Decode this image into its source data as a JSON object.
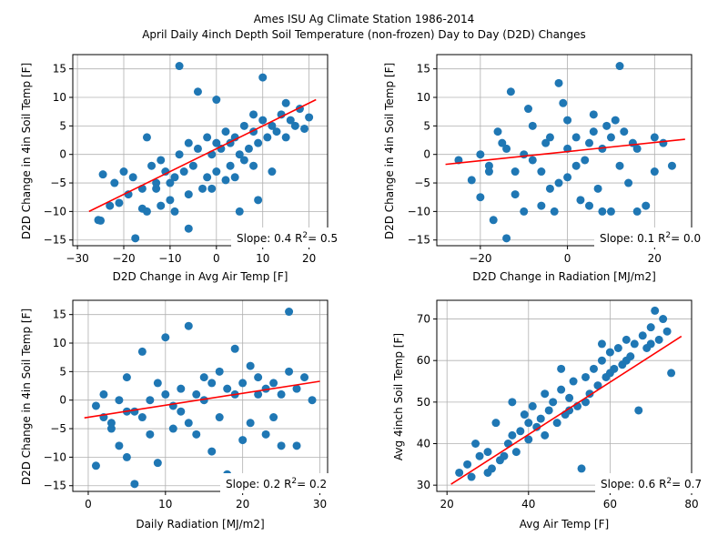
{
  "figure": {
    "title_line1": "Ames ISU Ag Climate Station 1986-2014",
    "title_line2": "April Daily 4inch Depth Soil Temperature (non-frozen) Day to Day (D2D) Changes"
  },
  "colors": {
    "points": "#1f77b4",
    "fit_line": "#ff0000",
    "grid": "#b0b0b0"
  },
  "chart_data": [
    {
      "type": "scatter",
      "id": "d2d-air-temp",
      "xlabel": "D2D Change in Avg Air Temp [F]",
      "ylabel": "D2D Change in 4in Soil Temp [F]",
      "xlim": [
        -31,
        24
      ],
      "ylim": [
        -16,
        17.5
      ],
      "xticks": [
        -30,
        -20,
        -10,
        0,
        10,
        20
      ],
      "yticks": [
        -15,
        -10,
        -5,
        0,
        5,
        10,
        15
      ],
      "grid": true,
      "annotation": {
        "slope_text": "Slope: 0.4",
        "r2_prefix": "R",
        "r2_sup": "2",
        "r2_text": "= 0.5"
      },
      "fit": {
        "slope": 0.4,
        "intercept": 1.0,
        "x_range": [
          -27.5,
          21.5
        ]
      },
      "points": [
        [
          -25.5,
          -11.5
        ],
        [
          -25,
          -11.6
        ],
        [
          -24.5,
          -3.5
        ],
        [
          -21,
          -8.5
        ],
        [
          -19,
          -7
        ],
        [
          -17.5,
          -14.7
        ],
        [
          -16,
          -9.5
        ],
        [
          -15,
          3
        ],
        [
          -13,
          -6
        ],
        [
          -8,
          15.5
        ],
        [
          -6,
          -13
        ],
        [
          -4,
          11
        ],
        [
          -2,
          -4
        ],
        [
          0,
          9.6
        ],
        [
          2,
          -4.5
        ],
        [
          5,
          -10
        ],
        [
          8,
          7
        ],
        [
          9,
          -8
        ],
        [
          10,
          13.5
        ],
        [
          12,
          -3
        ],
        [
          15,
          9
        ],
        [
          18,
          8
        ],
        [
          20,
          6.5
        ],
        [
          -22,
          -5
        ],
        [
          -20,
          -3
        ],
        [
          -18,
          -4
        ],
        [
          -14,
          -2
        ],
        [
          -12,
          -1
        ],
        [
          -10,
          -5
        ],
        [
          -8,
          0
        ],
        [
          -6,
          2
        ],
        [
          -4,
          1
        ],
        [
          -2,
          3
        ],
        [
          0,
          2
        ],
        [
          2,
          4
        ],
        [
          4,
          3
        ],
        [
          6,
          5
        ],
        [
          8,
          4
        ],
        [
          10,
          6
        ],
        [
          12,
          5
        ],
        [
          14,
          7
        ],
        [
          16,
          6
        ],
        [
          -12,
          -9
        ],
        [
          -10,
          -8
        ],
        [
          -6,
          -7
        ],
        [
          -3,
          -6
        ],
        [
          0,
          -3
        ],
        [
          3,
          -2
        ],
        [
          5,
          0
        ],
        [
          7,
          1
        ],
        [
          9,
          2
        ],
        [
          11,
          3
        ],
        [
          13,
          4
        ],
        [
          15,
          3
        ],
        [
          -16,
          -6
        ],
        [
          -9,
          -4
        ],
        [
          -7,
          -3
        ],
        [
          -5,
          -2
        ],
        [
          -1,
          0
        ],
        [
          1,
          1
        ],
        [
          3,
          2
        ],
        [
          -11,
          -3
        ],
        [
          -13,
          -5
        ],
        [
          6,
          -1
        ],
        [
          8,
          -2
        ],
        [
          4,
          -4
        ],
        [
          -1,
          -6
        ],
        [
          17,
          5
        ],
        [
          19,
          4.5
        ],
        [
          -23,
          -9
        ],
        [
          -15,
          -10
        ],
        [
          -9,
          -10
        ]
      ]
    },
    {
      "type": "scatter",
      "id": "d2d-radiation",
      "xlabel": "D2D Change in Radiation [MJ/m2]",
      "ylabel": "D2D Change in 4in Soil Temp [F]",
      "xlim": [
        -30,
        28.5
      ],
      "ylim": [
        -16,
        17.5
      ],
      "xticks": [
        -20,
        0,
        20
      ],
      "yticks": [
        -15,
        -10,
        -5,
        0,
        5,
        10,
        15
      ],
      "grid": true,
      "annotation": {
        "slope_text": "Slope: 0.1",
        "r2_prefix": "R",
        "r2_sup": "2",
        "r2_text": "= 0.0"
      },
      "fit": {
        "slope": 0.08,
        "intercept": 0.5,
        "x_range": [
          -28,
          27
        ]
      },
      "points": [
        [
          -25,
          -1
        ],
        [
          -22,
          -4.5
        ],
        [
          -20,
          -7.5
        ],
        [
          -18,
          -2
        ],
        [
          -17,
          -11.5
        ],
        [
          -16,
          4
        ],
        [
          -14,
          -14.7
        ],
        [
          -13,
          11
        ],
        [
          -12,
          -7
        ],
        [
          -10,
          -10
        ],
        [
          -8,
          5
        ],
        [
          -6,
          -9
        ],
        [
          -4,
          -6
        ],
        [
          -3,
          -10
        ],
        [
          -2,
          12.5
        ],
        [
          0,
          6
        ],
        [
          2,
          3
        ],
        [
          3,
          -8
        ],
        [
          5,
          -9
        ],
        [
          6,
          7
        ],
        [
          8,
          -10
        ],
        [
          10,
          -10
        ],
        [
          12,
          15.5
        ],
        [
          14,
          -5
        ],
        [
          16,
          -10
        ],
        [
          18,
          -9
        ],
        [
          20,
          -3
        ],
        [
          22,
          2
        ],
        [
          24,
          -2
        ],
        [
          -20,
          0
        ],
        [
          -15,
          2
        ],
        [
          -10,
          0
        ],
        [
          -5,
          2
        ],
        [
          0,
          1
        ],
        [
          5,
          2
        ],
        [
          10,
          3
        ],
        [
          15,
          2
        ],
        [
          20,
          3
        ],
        [
          -18,
          -3
        ],
        [
          -12,
          -3
        ],
        [
          -8,
          -1
        ],
        [
          -4,
          3
        ],
        [
          4,
          -1
        ],
        [
          8,
          1
        ],
        [
          12,
          -2
        ],
        [
          16,
          1
        ],
        [
          -6,
          -3
        ],
        [
          2,
          -2
        ],
        [
          6,
          4
        ],
        [
          -14,
          1
        ],
        [
          0,
          -4
        ],
        [
          -2,
          -5
        ],
        [
          7,
          -6
        ],
        [
          9,
          5
        ],
        [
          11,
          6
        ],
        [
          -9,
          8
        ],
        [
          13,
          4
        ],
        [
          -1,
          9
        ]
      ]
    },
    {
      "type": "scatter",
      "id": "daily-radiation",
      "xlabel": "Daily Radiation [MJ/m2]",
      "ylabel": "D2D Change in 4in Soil Temp [F]",
      "xlim": [
        -2,
        31
      ],
      "ylim": [
        -16,
        17.5
      ],
      "xticks": [
        0,
        10,
        20,
        30
      ],
      "yticks": [
        -15,
        -10,
        -5,
        0,
        5,
        10,
        15
      ],
      "grid": true,
      "annotation": {
        "slope_text": "Slope: 0.2",
        "r2_prefix": "R",
        "r2_sup": "2",
        "r2_text": "= 0.2"
      },
      "fit": {
        "slope": 0.21,
        "intercept": -3.0,
        "x_range": [
          -0.5,
          30
        ]
      },
      "points": [
        [
          1,
          -11.5
        ],
        [
          1,
          -1
        ],
        [
          2,
          -3
        ],
        [
          3,
          -5
        ],
        [
          4,
          -8
        ],
        [
          5,
          -10
        ],
        [
          5,
          4
        ],
        [
          6,
          -14.7
        ],
        [
          7,
          8.5
        ],
        [
          8,
          -6
        ],
        [
          9,
          -11
        ],
        [
          10,
          11
        ],
        [
          11,
          -5
        ],
        [
          12,
          -2
        ],
        [
          13,
          13
        ],
        [
          14,
          -6
        ],
        [
          15,
          4
        ],
        [
          16,
          -9
        ],
        [
          17,
          -3
        ],
        [
          18,
          -13
        ],
        [
          19,
          9
        ],
        [
          20,
          -7
        ],
        [
          21,
          -4
        ],
        [
          22,
          1
        ],
        [
          23,
          -6
        ],
        [
          24,
          -3
        ],
        [
          25,
          -8
        ],
        [
          26,
          15.5
        ],
        [
          27,
          -8
        ],
        [
          28,
          4
        ],
        [
          29,
          0
        ],
        [
          2,
          1
        ],
        [
          4,
          0
        ],
        [
          6,
          -2
        ],
        [
          8,
          0
        ],
        [
          10,
          1
        ],
        [
          12,
          2
        ],
        [
          14,
          1
        ],
        [
          16,
          3
        ],
        [
          18,
          2
        ],
        [
          20,
          3
        ],
        [
          22,
          4
        ],
        [
          24,
          3
        ],
        [
          26,
          5
        ],
        [
          3,
          -4
        ],
        [
          7,
          -3
        ],
        [
          11,
          -1
        ],
        [
          15,
          0
        ],
        [
          19,
          1
        ],
        [
          23,
          2
        ],
        [
          9,
          3
        ],
        [
          13,
          -4
        ],
        [
          17,
          5
        ],
        [
          21,
          6
        ],
        [
          25,
          1
        ],
        [
          5,
          -2
        ],
        [
          27,
          2
        ]
      ]
    },
    {
      "type": "scatter",
      "id": "avg-temps",
      "xlabel": "Avg Air Temp [F]",
      "ylabel": "Avg 4inch Soil Temp [F]",
      "xlim": [
        17.5,
        80
      ],
      "ylim": [
        28.5,
        74.5
      ],
      "xticks": [
        20,
        40,
        60,
        80
      ],
      "yticks": [
        30,
        40,
        50,
        60,
        70
      ],
      "grid": true,
      "annotation": {
        "slope_text": "Slope: 0.6",
        "r2_prefix": "R",
        "r2_sup": "2",
        "r2_text": "= 0.7"
      },
      "fit": {
        "slope": 0.63,
        "intercept": 17.0,
        "x_range": [
          21,
          77.5
        ]
      },
      "points": [
        [
          23,
          33
        ],
        [
          25,
          35
        ],
        [
          26,
          32
        ],
        [
          27,
          40
        ],
        [
          28,
          37
        ],
        [
          30,
          38
        ],
        [
          31,
          34
        ],
        [
          32,
          45
        ],
        [
          33,
          36
        ],
        [
          35,
          40
        ],
        [
          36,
          42
        ],
        [
          37,
          38
        ],
        [
          38,
          43
        ],
        [
          39,
          47
        ],
        [
          40,
          41
        ],
        [
          41,
          49
        ],
        [
          42,
          44
        ],
        [
          43,
          46
        ],
        [
          44,
          52
        ],
        [
          45,
          48
        ],
        [
          46,
          50
        ],
        [
          47,
          45
        ],
        [
          48,
          53
        ],
        [
          49,
          47
        ],
        [
          50,
          51
        ],
        [
          51,
          55
        ],
        [
          52,
          49
        ],
        [
          53,
          34
        ],
        [
          54,
          56
        ],
        [
          55,
          52
        ],
        [
          56,
          58
        ],
        [
          57,
          54
        ],
        [
          58,
          60
        ],
        [
          59,
          56
        ],
        [
          60,
          62
        ],
        [
          61,
          58
        ],
        [
          62,
          63
        ],
        [
          63,
          59
        ],
        [
          64,
          65
        ],
        [
          65,
          61
        ],
        [
          66,
          64
        ],
        [
          67,
          48
        ],
        [
          68,
          66
        ],
        [
          69,
          63
        ],
        [
          70,
          68
        ],
        [
          71,
          72
        ],
        [
          72,
          65
        ],
        [
          73,
          70
        ],
        [
          74,
          67
        ],
        [
          75,
          57
        ],
        [
          34,
          37
        ],
        [
          44,
          42
        ],
        [
          54,
          50
        ],
        [
          64,
          60
        ],
        [
          30,
          33
        ],
        [
          40,
          45
        ],
        [
          50,
          48
        ],
        [
          60,
          57
        ],
        [
          70,
          64
        ],
        [
          36,
          50
        ],
        [
          48,
          58
        ],
        [
          58,
          64
        ]
      ]
    }
  ]
}
